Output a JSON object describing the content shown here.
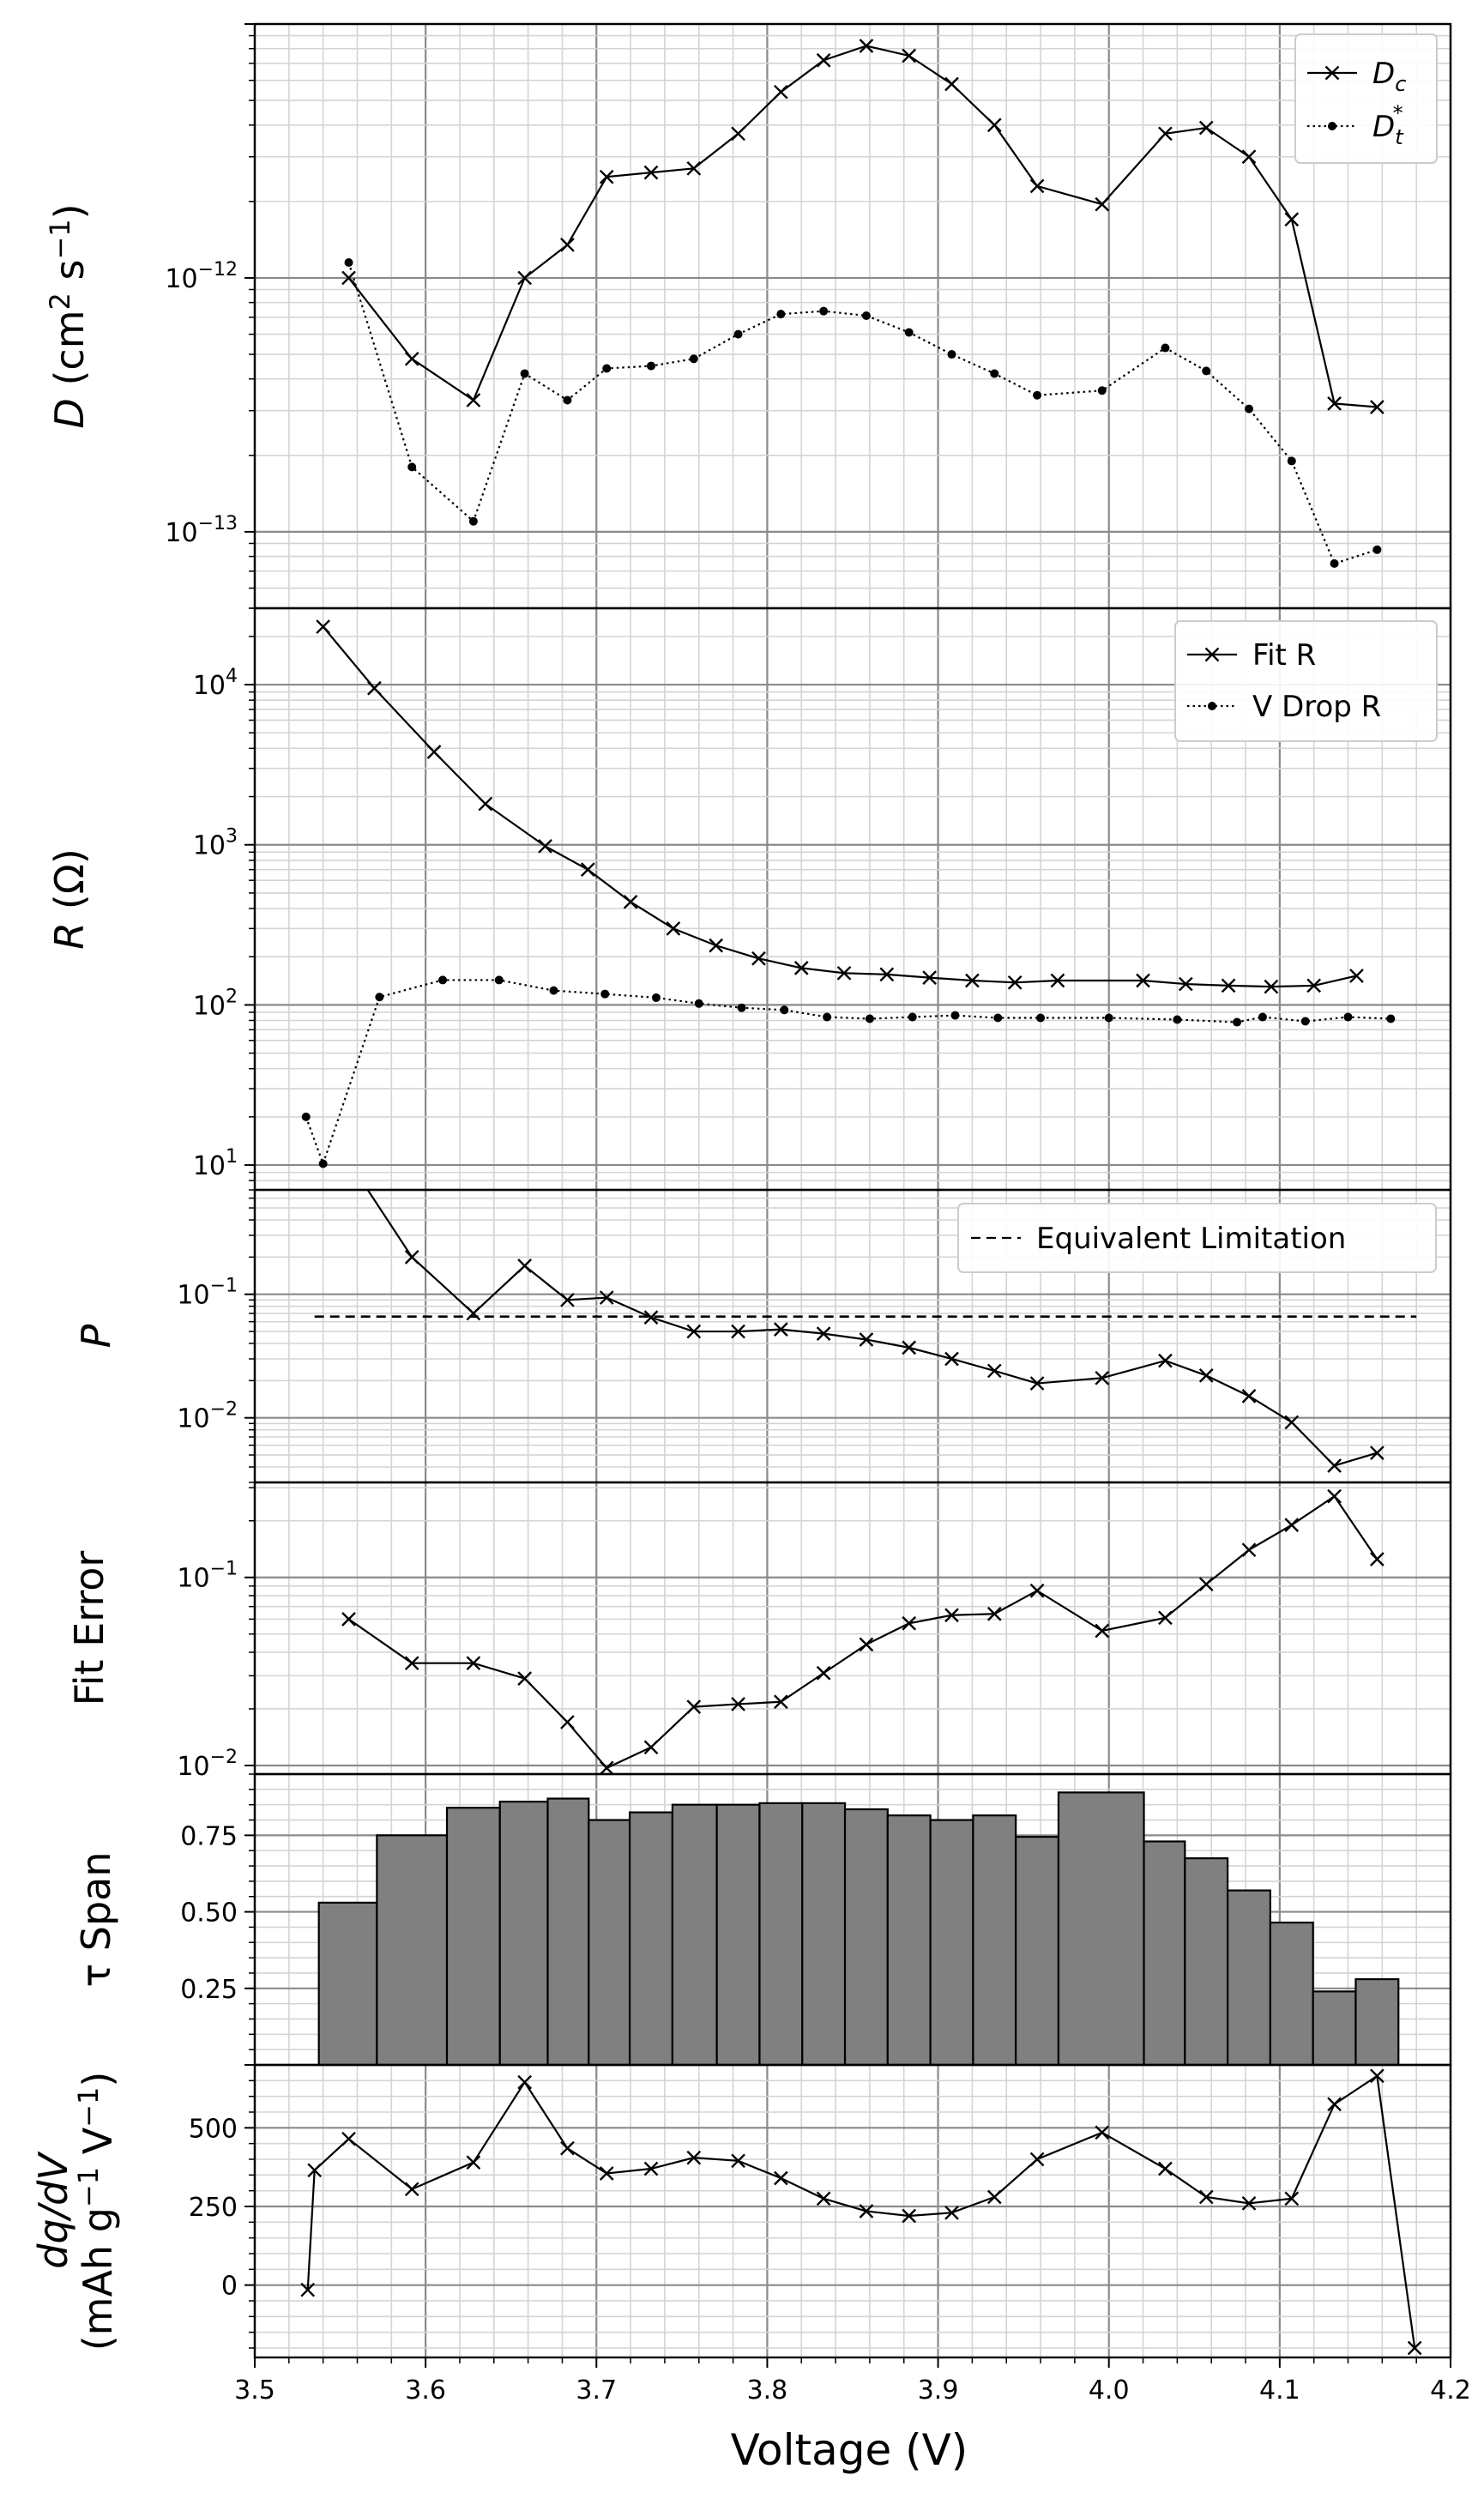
{
  "figure": {
    "xlabel": "Voltage (V)",
    "x_ticks": [
      "3.5",
      "3.6",
      "3.7",
      "3.8",
      "3.9",
      "4.0",
      "4.1",
      "4.2"
    ],
    "xlim": [
      3.5,
      4.2
    ]
  },
  "chart_data": [
    {
      "type": "line",
      "ylabel_main": "D",
      "ylabel_rest": " (cm",
      "ylabel_unit_sup1": "2",
      "ylabel_unit_mid": " s",
      "ylabel_unit_sup2": "−1",
      "ylabel_unit_end": ")",
      "yscale": "log",
      "ylim": [
        5e-14,
        1e-11
      ],
      "grid": true,
      "legend_position": "top-right",
      "y_ticks": [
        {
          "value": 1e-13,
          "base": "10",
          "exp": "−13"
        },
        {
          "value": 1e-12,
          "base": "10",
          "exp": "−12"
        }
      ],
      "series": [
        {
          "name": "D_c",
          "legend_main": "D",
          "legend_sub": "c",
          "legend_sup": "",
          "marker": "x",
          "linestyle": "solid",
          "x": [
            3.555,
            3.592,
            3.628,
            3.658,
            3.683,
            3.706,
            3.732,
            3.757,
            3.783,
            3.808,
            3.833,
            3.858,
            3.883,
            3.908,
            3.933,
            3.958,
            3.996,
            4.033,
            4.057,
            4.082,
            4.107,
            4.132,
            4.157
          ],
          "y": [
            1e-12,
            4.8e-13,
            3.3e-13,
            1e-12,
            1.35e-12,
            2.5e-12,
            2.6e-12,
            2.7e-12,
            3.7e-12,
            5.4e-12,
            7.2e-12,
            8.2e-12,
            7.5e-12,
            5.8e-12,
            4e-12,
            2.3e-12,
            1.95e-12,
            3.7e-12,
            3.9e-12,
            3e-12,
            1.7e-12,
            3.2e-13,
            3.1e-13
          ]
        },
        {
          "name": "D_t*",
          "legend_main": "D",
          "legend_sub": "t",
          "legend_sup": "*",
          "marker": "dot",
          "linestyle": "dotted",
          "x": [
            3.555,
            3.592,
            3.628,
            3.658,
            3.683,
            3.706,
            3.732,
            3.757,
            3.783,
            3.808,
            3.833,
            3.858,
            3.883,
            3.908,
            3.933,
            3.958,
            3.996,
            4.033,
            4.057,
            4.082,
            4.107,
            4.132,
            4.157
          ],
          "y": [
            1.15e-12,
            1.8e-13,
            1.1e-13,
            4.2e-13,
            3.3e-13,
            4.4e-13,
            4.5e-13,
            4.8e-13,
            6e-13,
            7.2e-13,
            7.4e-13,
            7.1e-13,
            6.1e-13,
            5e-13,
            4.2e-13,
            3.45e-13,
            3.6e-13,
            5.3e-13,
            4.3e-13,
            3.05e-13,
            1.9e-13,
            7.5e-14,
            8.5e-14
          ]
        }
      ]
    },
    {
      "type": "line",
      "ylabel_main": "R",
      "ylabel_rest": " (Ω)",
      "yscale": "log",
      "ylim": [
        7,
        30000
      ],
      "grid": true,
      "legend_position": "top-right",
      "y_ticks": [
        {
          "value": 10,
          "base": "10",
          "exp": "1"
        },
        {
          "value": 100,
          "base": "10",
          "exp": "2"
        },
        {
          "value": 1000,
          "base": "10",
          "exp": "3"
        },
        {
          "value": 10000,
          "base": "10",
          "exp": "4"
        }
      ],
      "series": [
        {
          "name": "Fit R",
          "marker": "x",
          "linestyle": "solid",
          "x": [
            3.54,
            3.57,
            3.605,
            3.635,
            3.67,
            3.695,
            3.72,
            3.745,
            3.77,
            3.795,
            3.82,
            3.845,
            3.87,
            3.895,
            3.92,
            3.945,
            3.97,
            4.02,
            4.045,
            4.07,
            4.095,
            4.12,
            4.145
          ],
          "y": [
            23000,
            9500,
            3800,
            1800,
            980,
            700,
            440,
            300,
            235,
            195,
            170,
            158,
            155,
            148,
            142,
            138,
            142,
            142,
            135,
            132,
            130,
            132,
            152
          ]
        },
        {
          "name": "V Drop R",
          "marker": "dot",
          "linestyle": "dotted",
          "x": [
            3.53,
            3.54,
            3.573,
            3.61,
            3.643,
            3.675,
            3.705,
            3.735,
            3.76,
            3.785,
            3.81,
            3.835,
            3.86,
            3.885,
            3.91,
            3.935,
            3.96,
            4.0,
            4.04,
            4.075,
            4.09,
            4.115,
            4.14,
            4.165
          ],
          "y": [
            20,
            10.2,
            112,
            143,
            143,
            123,
            117,
            111,
            102,
            96,
            93,
            84,
            82,
            84,
            86,
            83,
            83,
            83,
            81,
            78,
            84,
            79,
            84,
            82
          ]
        }
      ]
    },
    {
      "type": "line",
      "ylabel_main": "P",
      "ylabel_rest": "",
      "yscale": "log",
      "ylim": [
        0.003,
        0.7
      ],
      "grid": true,
      "legend_position": "top-right",
      "y_ticks": [
        {
          "value": 0.01,
          "base": "10",
          "exp": "−2"
        },
        {
          "value": 0.1,
          "base": "10",
          "exp": "−1"
        }
      ],
      "series": [
        {
          "name": "P",
          "marker": "x",
          "linestyle": "solid",
          "x": [
            3.555,
            3.592,
            3.628,
            3.658,
            3.683,
            3.706,
            3.732,
            3.757,
            3.783,
            3.808,
            3.833,
            3.858,
            3.883,
            3.908,
            3.933,
            3.958,
            3.996,
            4.033,
            4.057,
            4.082,
            4.107,
            4.132,
            4.157
          ],
          "y": [
            1.2,
            0.2,
            0.07,
            0.17,
            0.09,
            0.094,
            0.065,
            0.05,
            0.05,
            0.052,
            0.048,
            0.043,
            0.037,
            0.03,
            0.024,
            0.019,
            0.021,
            0.029,
            0.022,
            0.015,
            0.0092,
            0.0041,
            0.0052
          ]
        }
      ],
      "reference_line": {
        "name": "Equivalent Limitation",
        "y": 0.066,
        "x": [
          3.535,
          4.18
        ],
        "linestyle": "dashed"
      }
    },
    {
      "type": "line",
      "ylabel_main": "Fit Error",
      "ylabel_rest": "",
      "yscale": "log",
      "ylim": [
        0.009,
        0.32
      ],
      "grid": true,
      "y_ticks": [
        {
          "value": 0.01,
          "base": "10",
          "exp": "−2"
        },
        {
          "value": 0.1,
          "base": "10",
          "exp": "−1"
        }
      ],
      "series": [
        {
          "name": "Fit Error",
          "marker": "x",
          "linestyle": "solid",
          "x": [
            3.555,
            3.592,
            3.628,
            3.658,
            3.683,
            3.706,
            3.732,
            3.757,
            3.783,
            3.808,
            3.833,
            3.858,
            3.883,
            3.908,
            3.933,
            3.958,
            3.996,
            4.033,
            4.057,
            4.082,
            4.107,
            4.132,
            4.157
          ],
          "y": [
            0.06,
            0.035,
            0.035,
            0.029,
            0.017,
            0.0097,
            0.0125,
            0.0205,
            0.0212,
            0.0218,
            0.031,
            0.044,
            0.057,
            0.063,
            0.064,
            0.085,
            0.052,
            0.061,
            0.092,
            0.14,
            0.19,
            0.27,
            0.125
          ]
        }
      ]
    },
    {
      "type": "bar",
      "ylabel_main": "τ Span",
      "ylabel_rest": "",
      "yscale": "linear",
      "ylim": [
        0.0,
        0.95
      ],
      "grid": true,
      "y_ticks": [
        {
          "value": 0.25,
          "label": "0.25"
        },
        {
          "value": 0.5,
          "label": "0.50"
        },
        {
          "value": 0.75,
          "label": "0.75"
        }
      ],
      "bar_edges": [
        3.5375,
        3.5715,
        3.6125,
        3.6435,
        3.6715,
        3.6955,
        3.7195,
        3.7445,
        3.7705,
        3.7955,
        3.8205,
        3.8455,
        3.8705,
        3.8955,
        3.9205,
        3.9455,
        3.9705,
        4.0205,
        4.0445,
        4.0695,
        4.0945,
        4.1195,
        4.1445,
        4.1695
      ],
      "values": [
        0.53,
        0.75,
        0.84,
        0.86,
        0.87,
        0.8,
        0.825,
        0.85,
        0.85,
        0.855,
        0.855,
        0.835,
        0.815,
        0.8,
        0.815,
        0.745,
        0.89,
        0.73,
        0.675,
        0.57,
        0.465,
        0.24,
        0.28
      ]
    },
    {
      "type": "line",
      "ylabel_line1": "dq/dV",
      "ylabel_line2_a": "(mAh g",
      "ylabel_line2_sup1": "−1",
      "ylabel_line2_b": " V",
      "ylabel_line2_sup2": "−1",
      "ylabel_line2_c": ")",
      "yscale": "linear",
      "ylim": [
        -230,
        700
      ],
      "grid": true,
      "y_ticks": [
        {
          "value": 0,
          "label": "0"
        },
        {
          "value": 250,
          "label": "250"
        },
        {
          "value": 500,
          "label": "500"
        }
      ],
      "series": [
        {
          "name": "dq/dV",
          "marker": "x",
          "linestyle": "solid",
          "x": [
            3.531,
            3.535,
            3.555,
            3.592,
            3.628,
            3.658,
            3.683,
            3.706,
            3.732,
            3.757,
            3.783,
            3.808,
            3.833,
            3.858,
            3.883,
            3.908,
            3.933,
            3.958,
            3.996,
            4.033,
            4.057,
            4.082,
            4.107,
            4.132,
            4.157,
            4.179
          ],
          "y": [
            -15,
            365,
            465,
            305,
            390,
            645,
            435,
            355,
            370,
            405,
            395,
            340,
            275,
            235,
            220,
            230,
            280,
            400,
            485,
            370,
            280,
            260,
            275,
            575,
            665,
            -200
          ]
        }
      ]
    }
  ]
}
